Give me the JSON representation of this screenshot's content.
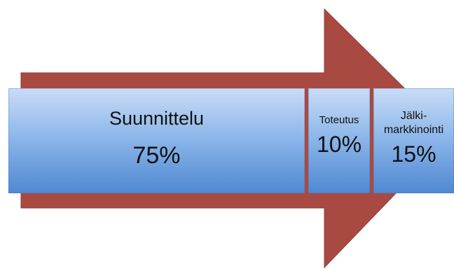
{
  "colors": {
    "arrow": "#a94a42",
    "segment_top": "#c9dcf6",
    "segment_bottom": "#4f88d3",
    "text": "#111111"
  },
  "phases": [
    {
      "label": "Suunnittelu",
      "value": "75%"
    },
    {
      "label": "Toteutus",
      "value": "10%"
    },
    {
      "label": "Jälki-\nmarkkinointi",
      "value": "15%"
    }
  ]
}
